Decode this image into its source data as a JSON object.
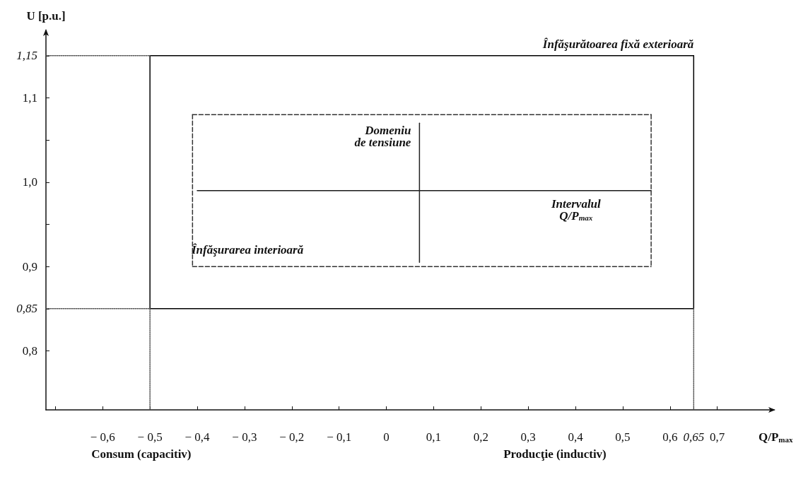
{
  "chart_data": {
    "type": "line",
    "xlabel": "Q/P$_{max}$",
    "ylabel": "U [p.u.]",
    "marker": "none",
    "grid": false,
    "xlim": [
      -0.72,
      0.82
    ],
    "ylim": [
      0.73,
      1.18
    ],
    "xticks": [
      {
        "value": -0.7,
        "label": null
      },
      {
        "value": -0.6,
        "label": "− 0,6"
      },
      {
        "value": -0.5,
        "label": "− 0,5"
      },
      {
        "value": -0.4,
        "label": "− 0,4"
      },
      {
        "value": -0.3,
        "label": "− 0,3"
      },
      {
        "value": -0.2,
        "label": "− 0,2"
      },
      {
        "value": -0.1,
        "label": "− 0,1"
      },
      {
        "value": 0,
        "label": "0"
      },
      {
        "value": 0.1,
        "label": "0,1"
      },
      {
        "value": 0.2,
        "label": "0,2"
      },
      {
        "value": 0.3,
        "label": "0,3"
      },
      {
        "value": 0.4,
        "label": "0,4"
      },
      {
        "value": 0.5,
        "label": "0,5"
      },
      {
        "value": 0.6,
        "label": "0,6"
      },
      {
        "value": 0.65,
        "label": "0,65"
      },
      {
        "value": 0.7,
        "label": "0,7"
      }
    ],
    "yticks": [
      {
        "value": 0.8,
        "label": "0,8"
      },
      {
        "value": 0.85,
        "label": "0,85"
      },
      {
        "value": 0.9,
        "label": "0,9"
      },
      {
        "value": 0.95,
        "label": null
      },
      {
        "value": 1.0,
        "label": "1,0"
      },
      {
        "value": 1.05,
        "label": null
      },
      {
        "value": 1.1,
        "label": "1,1"
      },
      {
        "value": 1.15,
        "label": "1,15"
      }
    ],
    "series": [
      {
        "color": "#000000",
        "line_style": "solid",
        "x": [
          -0.5,
          0.65
        ],
        "values": [
          1.15,
          1.15
        ]
      },
      {
        "color": "#000000",
        "line_style": "solid",
        "x": [
          0.65,
          0.65
        ],
        "values": [
          1.15,
          0.85
        ]
      },
      {
        "color": "#000000",
        "line_style": "solid",
        "x": [
          -0.5,
          0.65
        ],
        "values": [
          0.85,
          0.85
        ]
      },
      {
        "color": "#000000",
        "line_style": "solid",
        "x": [
          -0.5,
          -0.5
        ],
        "values": [
          1.15,
          0.85
        ]
      },
      {
        "color": "#333333",
        "line_style": "dashed",
        "x": [
          -0.41,
          0.56
        ],
        "values": [
          1.08,
          1.08
        ]
      },
      {
        "color": "#333333",
        "line_style": "dashed",
        "x": [
          0.56,
          0.56
        ],
        "values": [
          1.08,
          0.9
        ]
      },
      {
        "color": "#333333",
        "line_style": "dashed",
        "x": [
          -0.41,
          0.56
        ],
        "values": [
          0.9,
          0.9
        ]
      },
      {
        "color": "#333333",
        "line_style": "dashed",
        "x": [
          -0.41,
          -0.41
        ],
        "values": [
          1.08,
          0.9
        ]
      },
      {
        "color": "#555555",
        "line_style": "dotted",
        "x": [
          -0.72,
          -0.5
        ],
        "values": [
          1.15,
          1.15
        ]
      },
      {
        "color": "#555555",
        "line_style": "dotted",
        "x": [
          -0.72,
          -0.5
        ],
        "values": [
          0.85,
          0.85
        ]
      },
      {
        "color": "#555555",
        "line_style": "dotted",
        "x": [
          -0.5,
          -0.5
        ],
        "values": [
          0.85,
          0.73
        ]
      },
      {
        "color": "#555555",
        "line_style": "dotted",
        "x": [
          0.65,
          0.65
        ],
        "values": [
          0.85,
          0.73
        ]
      },
      {
        "color": "#1a1a1a",
        "line_style": "solid",
        "x": [
          -0.4,
          0.56
        ],
        "values": [
          0.99,
          0.99
        ]
      },
      {
        "color": "#222222",
        "line_style": "solid",
        "x": [
          0.07,
          0.07
        ],
        "values": [
          1.07,
          0.905
        ]
      }
    ],
    "annotations": [
      {
        "text": "Înfăşurătoarea fixă exterioară",
        "x": 0.65,
        "y": 1.15
      },
      "Înfăşurarea interioară",
      {
        "text": "Domeniu\nde tensiune",
        "x": 0.07,
        "y": 1.04
      },
      "Intervalul\nQ/P$_{max}$",
      "Consum (capacitiv)",
      "Producţie (inductiv)"
    ]
  }
}
